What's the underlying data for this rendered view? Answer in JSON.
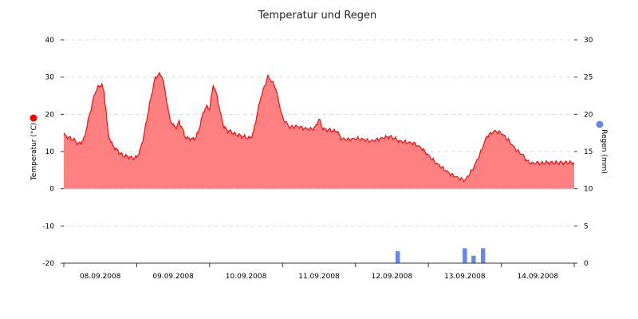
{
  "chart_data": {
    "type": "area",
    "title": "Temperatur und Regen",
    "x_tick_labels": [
      "08.09.2008",
      "09.09.2008",
      "10.09.2008",
      "11.09.2008",
      "12.09.2008",
      "13.09.2008",
      "14.09.2008"
    ],
    "xlim": [
      0,
      7
    ],
    "grid": true,
    "legend": "none",
    "left_axis": {
      "label": "Temperatur (°C)",
      "ylim": [
        -20,
        40
      ],
      "ticks": [
        -20,
        -10,
        0,
        10,
        20,
        30,
        40
      ],
      "marker_color": "#ff0000"
    },
    "right_axis": {
      "label": "Regen (mm)",
      "ylim": [
        0,
        30
      ],
      "ticks": [
        0,
        5,
        10,
        15,
        20,
        25,
        30
      ],
      "marker_color": "#6688ee"
    },
    "series": [
      {
        "type": "area",
        "axis": "left",
        "line_color": "#ee1111",
        "fill_color": "#ff8080",
        "x": [
          0,
          0.04,
          0.1,
          0.15,
          0.2,
          0.24,
          0.28,
          0.33,
          0.38,
          0.43,
          0.48,
          0.52,
          0.55,
          0.58,
          0.6,
          0.62,
          0.66,
          0.7,
          0.75,
          0.8,
          0.85,
          0.9,
          0.95,
          1.0,
          1.05,
          1.1,
          1.15,
          1.2,
          1.25,
          1.3,
          1.35,
          1.4,
          1.45,
          1.5,
          1.55,
          1.58,
          1.62,
          1.66,
          1.7,
          1.72,
          1.76,
          1.8,
          1.84,
          1.88,
          1.92,
          1.96,
          2.0,
          2.05,
          2.1,
          2.15,
          2.2,
          2.25,
          2.28,
          2.32,
          2.36,
          2.4,
          2.44,
          2.48,
          2.55,
          2.6,
          2.65,
          2.7,
          2.8,
          2.9,
          3.0,
          3.1,
          3.2,
          3.3,
          3.4,
          3.45,
          3.5,
          3.55,
          3.6,
          3.65,
          3.7,
          3.75,
          3.8,
          3.9,
          4.0,
          4.1,
          4.2,
          4.3,
          4.4,
          4.48,
          4.54,
          4.6,
          4.7,
          4.8,
          4.9,
          5.0,
          5.1,
          5.2,
          5.3,
          5.4,
          5.5,
          5.6,
          5.7,
          5.8,
          5.9,
          6.0,
          6.1,
          6.2,
          6.3,
          6.35,
          6.42,
          6.5,
          6.55,
          6.6,
          6.65,
          6.7,
          6.75,
          6.8,
          6.85,
          6.9,
          6.95,
          7.0
        ],
        "y": [
          14.5,
          14,
          13.5,
          13,
          12,
          12.5,
          13.5,
          18,
          22,
          26,
          27.5,
          28,
          26,
          21,
          16,
          14,
          12,
          11,
          10,
          9,
          8.8,
          8.5,
          8.2,
          8.5,
          10.5,
          14.5,
          20,
          25,
          29.5,
          30.8,
          30.3,
          25,
          19,
          17,
          16.5,
          18,
          16.5,
          14,
          13.5,
          13.5,
          13.3,
          13.5,
          15,
          18,
          21,
          22,
          21.5,
          28,
          25,
          20,
          16.5,
          15.5,
          15.5,
          15,
          14.5,
          14.5,
          14,
          14,
          13.5,
          15,
          20,
          24.5,
          30.2,
          27.5,
          19,
          16.5,
          16.8,
          16.2,
          16,
          16.5,
          18.8,
          16.2,
          15.8,
          15.8,
          15.5,
          15.5,
          13.5,
          13.2,
          13.5,
          13.3,
          12.8,
          13.2,
          13.8,
          14,
          13.5,
          12.8,
          12.5,
          12.2,
          11,
          9,
          7,
          5.5,
          4,
          3,
          2.2,
          5,
          9,
          14,
          15.5,
          15,
          13,
          10.5,
          9,
          7.5,
          6.8,
          7,
          6.8,
          7.0,
          7.0,
          7.0,
          7.0,
          7.0,
          7.0,
          7.0,
          7.0,
          7.0
        ],
        "smooth_jitter": true
      },
      {
        "type": "bar",
        "axis": "right",
        "color": "#6688ee",
        "bar_width_days": 0.06,
        "x": [
          4.58,
          5.5,
          5.62,
          5.75
        ],
        "values": [
          1.6,
          2.0,
          1.0,
          2.0
        ]
      }
    ]
  }
}
